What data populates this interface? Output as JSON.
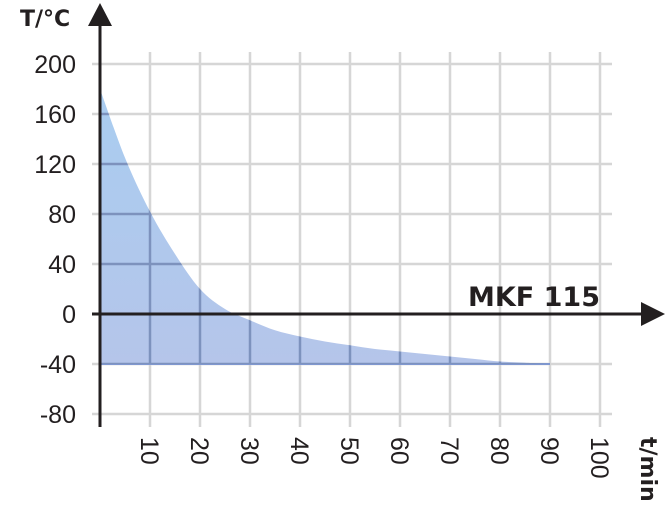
{
  "chart_data": {
    "type": "area",
    "title": "",
    "series_label": "MKF 115",
    "xlabel": "t/min",
    "ylabel": "T/°C",
    "xlim": [
      0,
      100
    ],
    "ylim": [
      -80,
      200
    ],
    "grid": true,
    "x_ticks": [
      10,
      20,
      30,
      40,
      50,
      60,
      70,
      80,
      90,
      100
    ],
    "y_ticks": [
      200,
      160,
      120,
      80,
      40,
      0,
      -40,
      -80
    ],
    "series": [
      {
        "name": "MKF 115",
        "x": [
          0,
          5,
          10,
          15,
          20,
          25,
          30,
          35,
          40,
          45,
          50,
          55,
          60,
          65,
          70,
          75,
          80,
          85,
          90
        ],
        "values": [
          180,
          125,
          82,
          48,
          20,
          4,
          -5,
          -13,
          -18,
          -22,
          -25,
          -28,
          -30,
          -32,
          -34,
          -36,
          -38,
          -39,
          -40
        ],
        "fill_floor": -40
      }
    ],
    "colors": {
      "fill_top": "#a9cbee",
      "fill_bottom": "#b3c6ea",
      "axis": "#231f20",
      "grid": "#d6d6d6",
      "floor_line": "#7f97d0"
    }
  },
  "labels": {
    "y_axis_title": "T/°C",
    "x_axis_title": "t/min",
    "model": "MKF 115"
  }
}
